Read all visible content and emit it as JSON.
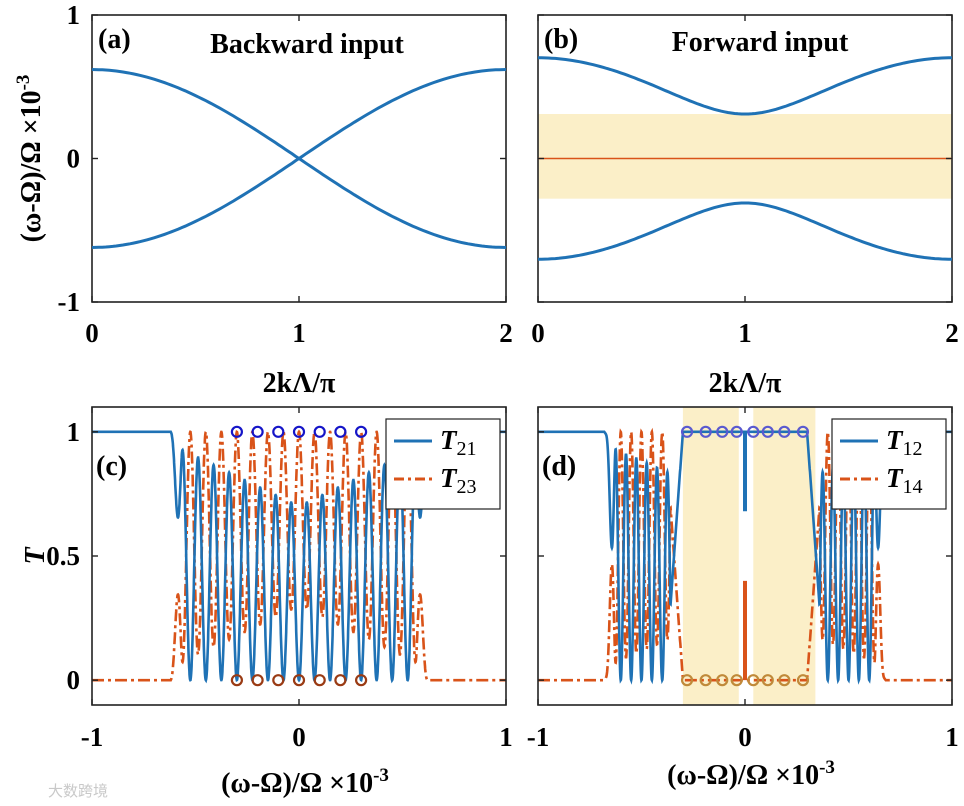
{
  "watermark": "大数跨境",
  "colors": {
    "blue": "#1f72b5",
    "orange": "#d95319",
    "shade": "#fbefc8",
    "marker_top": "#1515c8",
    "marker_bottom": "#9a3b14"
  },
  "chart_data": [
    {
      "id": "a",
      "type": "line",
      "panel_label": "(a)",
      "title": "Backward input",
      "xlabel": "2kΛ/π",
      "ylabel": "(ω-Ω)/Ω ×10",
      "ylabel_exp": "-3",
      "xlim": [
        0,
        2
      ],
      "ylim": [
        -1,
        1
      ],
      "xticks": [
        "0",
        "1",
        "2"
      ],
      "yticks": [
        "-1",
        "0",
        "1"
      ],
      "series": [
        {
          "name": "upper band",
          "x": [
            0,
            0.25,
            0.5,
            0.75,
            1,
            1.25,
            1.5,
            1.75,
            2
          ],
          "y": [
            0.62,
            0.57,
            0.44,
            0.24,
            0,
            -0.24,
            -0.44,
            -0.57,
            -0.62
          ]
        },
        {
          "name": "lower band",
          "x": [
            0,
            0.25,
            0.5,
            0.75,
            1,
            1.25,
            1.5,
            1.75,
            2
          ],
          "y": [
            -0.62,
            -0.57,
            -0.44,
            -0.24,
            0,
            0.24,
            0.44,
            0.57,
            0.62
          ]
        }
      ]
    },
    {
      "id": "b",
      "type": "line",
      "panel_label": "(b)",
      "title": "Forward input",
      "xlabel": "2kΛ/π",
      "xlim": [
        0,
        2
      ],
      "ylim": [
        -1,
        1
      ],
      "xticks": [
        "0",
        "1",
        "2"
      ],
      "band": [
        -0.28,
        0.31
      ],
      "series": [
        {
          "name": "upper band",
          "x": [
            0,
            0.25,
            0.5,
            0.75,
            1,
            1.25,
            1.5,
            1.75,
            2
          ],
          "y": [
            0.69,
            0.66,
            0.56,
            0.4,
            0.31,
            0.4,
            0.56,
            0.66,
            0.69
          ]
        },
        {
          "name": "lower band",
          "x": [
            0,
            0.25,
            0.5,
            0.75,
            1,
            1.25,
            1.5,
            1.75,
            2
          ],
          "y": [
            -0.69,
            -0.66,
            -0.56,
            -0.4,
            -0.31,
            -0.4,
            -0.56,
            -0.66,
            -0.69
          ]
        },
        {
          "name": "flat band",
          "x": [
            0,
            2
          ],
          "y": [
            0,
            0
          ]
        }
      ]
    },
    {
      "id": "c",
      "type": "line",
      "panel_label": "(c)",
      "xlabel": "(ω-Ω)/Ω ×10",
      "xlabel_exp": "-3",
      "ylabel": "T",
      "xlim": [
        -1,
        1
      ],
      "ylim": [
        -0.1,
        1.1
      ],
      "xticks": [
        "-1",
        "0",
        "1"
      ],
      "yticks": [
        "0",
        "0.5",
        "1"
      ],
      "band_edges": [
        -0.62,
        0.62
      ],
      "legend": [
        {
          "sym": "T",
          "sub": "21"
        },
        {
          "sym": "T",
          "sub": "23"
        }
      ],
      "markers_top": {
        "x": [
          -0.3,
          -0.2,
          -0.1,
          0,
          0.1,
          0.2,
          0.3
        ],
        "y": 1
      },
      "markers_bottom": {
        "x": [
          -0.3,
          -0.2,
          -0.1,
          0,
          0.1,
          0.2,
          0.3
        ],
        "y": 0
      }
    },
    {
      "id": "d",
      "type": "line",
      "panel_label": "(d)",
      "xlabel": "(ω-Ω)/Ω ×10",
      "xlabel_exp": "-3",
      "xlim": [
        -1,
        1
      ],
      "ylim": [
        -0.1,
        1.1
      ],
      "xticks": [
        "-1",
        "0",
        "1"
      ],
      "bands": [
        [
          -0.3,
          -0.03
        ],
        [
          0.04,
          0.34
        ]
      ],
      "band_edges": [
        -0.68,
        0.68
      ],
      "legend": [
        {
          "sym": "T",
          "sub": "12"
        },
        {
          "sym": "T",
          "sub": "14"
        }
      ],
      "markers_top": {
        "x": [
          -0.28,
          -0.19,
          -0.11,
          -0.04,
          0.04,
          0.11,
          0.19,
          0.28
        ],
        "y": 1
      },
      "markers_bottom": {
        "x": [
          -0.28,
          -0.19,
          -0.11,
          -0.04,
          0.04,
          0.11,
          0.19,
          0.28
        ],
        "y": 0
      }
    }
  ]
}
